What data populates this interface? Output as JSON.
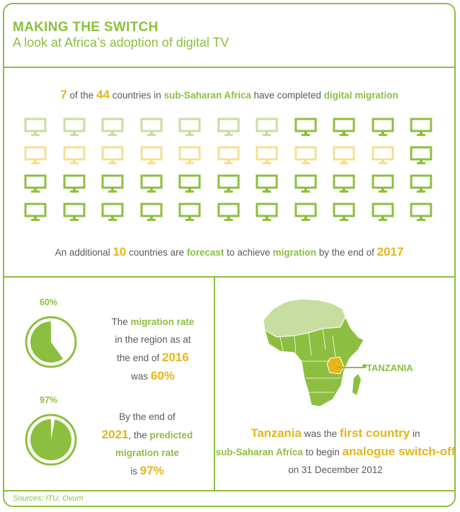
{
  "header": {
    "title": "MAKING THE SWITCH",
    "subtitle": "A look at Africa’s adoption of digital TV"
  },
  "top": {
    "completed_count": "7",
    "text_of_the": "of the",
    "total_count": "44",
    "text_countries_in": "countries in",
    "region": "sub-Saharan Africa",
    "text_have_completed": "have completed",
    "digital_migration": "digital migration",
    "forecast_prefix": "An additional",
    "forecast_count": "10",
    "forecast_mid1": "countries are",
    "forecast_word": "forecast",
    "forecast_mid2": "to achieve",
    "migration_word": "migration",
    "forecast_mid3": "by the end of",
    "forecast_year": "2017"
  },
  "tv_grid": {
    "columns": 11,
    "rows": [
      [
        "pale",
        "pale",
        "pale",
        "pale",
        "pale",
        "pale",
        "pale",
        "green",
        "green",
        "green",
        "green"
      ],
      [
        "yellow",
        "yellow",
        "yellow",
        "yellow",
        "yellow",
        "yellow",
        "yellow",
        "yellow",
        "yellow",
        "yellow",
        "green"
      ],
      [
        "green",
        "green",
        "green",
        "green",
        "green",
        "green",
        "green",
        "green",
        "green",
        "green",
        "green"
      ],
      [
        "green",
        "green",
        "green",
        "green",
        "green",
        "green",
        "green",
        "green",
        "green",
        "green",
        "green"
      ]
    ],
    "colors": {
      "pale": "#c8dea0",
      "yellow": "#f5df93",
      "green": "#8cbf3f"
    }
  },
  "stats": [
    {
      "percent_label": "60%",
      "value": 0.6,
      "line1_a": "The",
      "line1_b": "migration rate",
      "line2": "in the region as at",
      "line3_a": "the end of",
      "line3_b": "2016",
      "line4_a": "was",
      "line4_b": "60%"
    },
    {
      "percent_label": "97%",
      "value": 0.97,
      "line1": "By the end of",
      "line2_a": "2021",
      "line2_b": ", the",
      "line2_c": "predicted",
      "line3": "migration rate",
      "line4_a": "is",
      "line4_b": "97%"
    }
  ],
  "map": {
    "label": "TANZANIA",
    "note": {
      "country": "Tanzania",
      "t1": "was the",
      "first": "first country",
      "t2": "in",
      "region": "sub-Saharan Africa",
      "t3": "to begin",
      "switch": "analogue switch-off",
      "t4": "on 31 December 2012"
    }
  },
  "footer": {
    "source": "Sources: ITU, Ovum"
  },
  "colors": {
    "green": "#8cbf3f",
    "yellow": "#e6b51a",
    "text": "#5a5a5a"
  }
}
